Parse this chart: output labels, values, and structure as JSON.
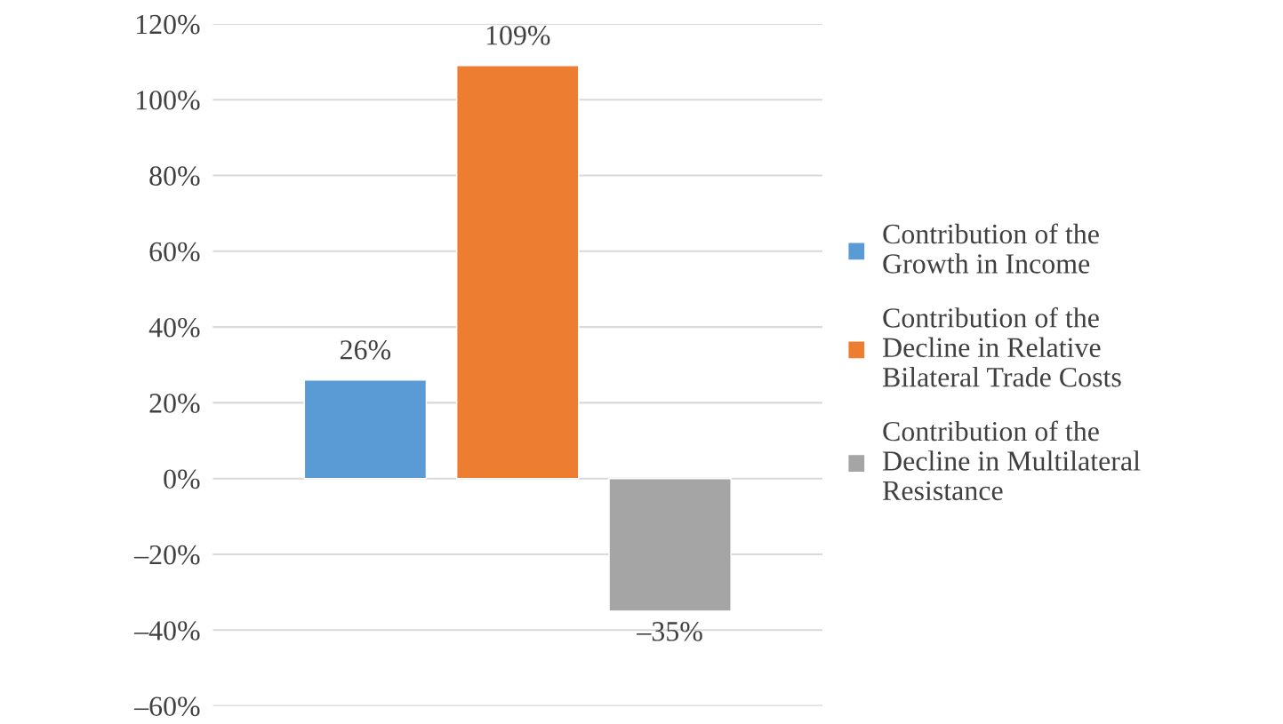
{
  "chart_data": {
    "type": "bar",
    "categories": [
      null
    ],
    "series": [
      {
        "name": "Contribution of the\nGrowth in Income",
        "color": "#5b9bd5",
        "values": [
          26
        ],
        "value_labels": [
          "26%"
        ]
      },
      {
        "name": "Contribution of the\nDecline in Relative\nBilateral Trade Costs",
        "color": "#ed7d31",
        "values": [
          109
        ],
        "value_labels": [
          "109%"
        ]
      },
      {
        "name": "Contribution of the\nDecline in Multilateral\nResistance",
        "color": "#a5a5a5",
        "values": [
          -35
        ],
        "value_labels": [
          "–35%"
        ]
      }
    ],
    "ylim": [
      -60,
      120
    ],
    "yticks": [
      {
        "value": -60,
        "label": "–60%"
      },
      {
        "value": -40,
        "label": "–40%"
      },
      {
        "value": -20,
        "label": "–20%"
      },
      {
        "value": 0,
        "label": "0%"
      },
      {
        "value": 20,
        "label": "20%"
      },
      {
        "value": 40,
        "label": "40%"
      },
      {
        "value": 60,
        "label": "60%"
      },
      {
        "value": 80,
        "label": "80%"
      },
      {
        "value": 100,
        "label": "100%"
      },
      {
        "value": 120,
        "label": "120%"
      }
    ],
    "grid": "y",
    "legend": "right"
  }
}
